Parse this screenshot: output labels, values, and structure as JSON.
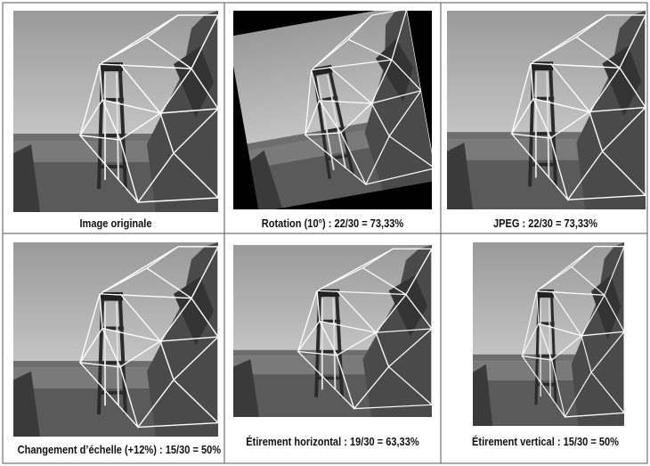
{
  "captions": [
    "Image originale",
    "Rotation (10°) : 22/30 = 73,33%",
    "JPEG : 22/30 = 73,33%",
    "Changement d’échelle (+12%) : 15/30 = 50%",
    "Étirement horizontal : 19/30 = 63,33%",
    "Étirement vertical : 15/30 = 50%"
  ]
}
